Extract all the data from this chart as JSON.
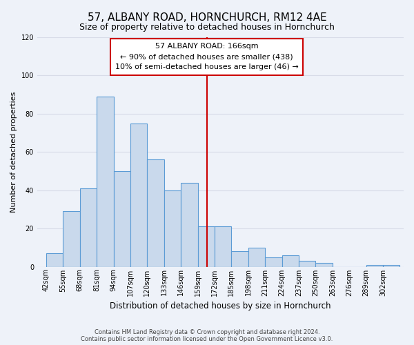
{
  "title": "57, ALBANY ROAD, HORNCHURCH, RM12 4AE",
  "subtitle": "Size of property relative to detached houses in Hornchurch",
  "xlabel": "Distribution of detached houses by size in Hornchurch",
  "ylabel": "Number of detached properties",
  "footer_line1": "Contains HM Land Registry data © Crown copyright and database right 2024.",
  "footer_line2": "Contains public sector information licensed under the Open Government Licence v3.0.",
  "bin_labels": [
    "42sqm",
    "55sqm",
    "68sqm",
    "81sqm",
    "94sqm",
    "107sqm",
    "120sqm",
    "133sqm",
    "146sqm",
    "159sqm",
    "172sqm",
    "185sqm",
    "198sqm",
    "211sqm",
    "224sqm",
    "237sqm",
    "250sqm",
    "263sqm",
    "276sqm",
    "289sqm",
    "302sqm"
  ],
  "bar_heights": [
    7,
    29,
    41,
    89,
    50,
    75,
    56,
    40,
    44,
    21,
    21,
    8,
    10,
    5,
    6,
    3,
    2,
    0,
    0,
    1,
    1
  ],
  "bin_edges": [
    42,
    55,
    68,
    81,
    94,
    107,
    120,
    133,
    146,
    159,
    172,
    185,
    198,
    211,
    224,
    237,
    250,
    263,
    276,
    289,
    302,
    315
  ],
  "bar_color": "#c9d9ec",
  "bar_edge_color": "#5b9bd5",
  "vline_x": 166,
  "vline_color": "#cc0000",
  "annotation_title": "57 ALBANY ROAD: 166sqm",
  "annotation_line1": "← 90% of detached houses are smaller (438)",
  "annotation_line2": "10% of semi-detached houses are larger (46) →",
  "annotation_box_color": "#ffffff",
  "annotation_border_color": "#cc0000",
  "ylim": [
    0,
    120
  ],
  "yticks": [
    0,
    20,
    40,
    60,
    80,
    100,
    120
  ],
  "xlim_left": 35,
  "xlim_right": 318,
  "bg_color": "#eef2f9",
  "grid_color": "#d8dce8",
  "title_fontsize": 11,
  "subtitle_fontsize": 9,
  "xlabel_fontsize": 8.5,
  "ylabel_fontsize": 8,
  "tick_fontsize": 7,
  "annotation_fontsize": 8,
  "footer_fontsize": 6
}
